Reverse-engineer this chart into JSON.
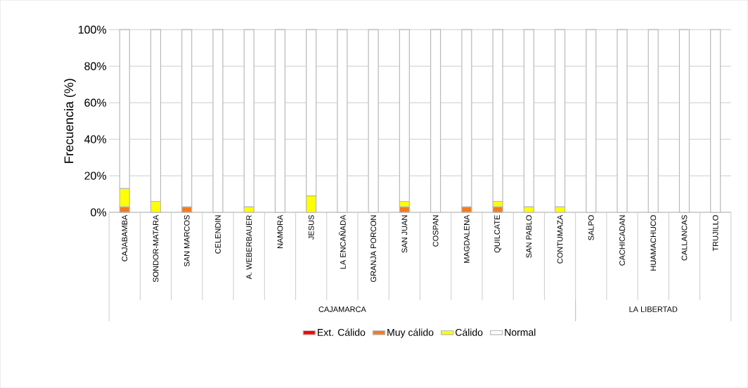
{
  "chart_data": {
    "type": "bar",
    "stacked": true,
    "ylabel": "Frecuencia (%)",
    "categories": [
      "CAJABAMBA",
      "SONDOR-MATARA",
      "SAN MARCOS",
      "CELENDIN",
      "A. WEBERBAUER",
      "NAMORA",
      "JESUS",
      "LA ENCAÑADA",
      "GRANJA PORCON",
      "SAN JUAN",
      "COSPAN",
      "MAGDALENA",
      "QUILCATE",
      "SAN PABLO",
      "CONTUMAZA",
      "SALPO",
      "CACHICADAN",
      "HUAMACHUCO",
      "CALLANCAS",
      "TRUJILLO"
    ],
    "series": [
      {
        "name": "Ext. Cálido",
        "color": "#ff0000",
        "values": [
          0,
          0,
          0,
          0,
          0,
          0,
          0,
          0,
          0,
          0,
          0,
          0,
          0,
          0,
          0,
          0,
          0,
          0,
          0,
          0
        ]
      },
      {
        "name": "Muy cálido",
        "color": "#f47b20",
        "values": [
          3,
          0,
          3,
          0,
          0,
          0,
          0,
          0,
          0,
          3,
          0,
          3,
          3,
          0,
          0,
          0,
          0,
          0,
          0,
          0
        ]
      },
      {
        "name": "Cálido",
        "color": "#ffff00",
        "values": [
          10,
          6,
          0,
          0,
          3,
          0,
          9,
          0,
          0,
          3,
          0,
          0,
          3,
          3,
          3,
          0,
          0,
          0,
          0,
          0
        ]
      },
      {
        "name": "Normal",
        "color": "#ffffff",
        "values": [
          87,
          94,
          97,
          100,
          97,
          100,
          91,
          100,
          100,
          94,
          100,
          97,
          94,
          97,
          97,
          100,
          100,
          100,
          100,
          100
        ]
      }
    ],
    "ylim": [
      0,
      100
    ],
    "yticks": [
      {
        "value": 0,
        "label": "0%"
      },
      {
        "value": 20,
        "label": "20%"
      },
      {
        "value": 40,
        "label": "40%"
      },
      {
        "value": 60,
        "label": "60%"
      },
      {
        "value": 80,
        "label": "80%"
      },
      {
        "value": 100,
        "label": "100%"
      }
    ],
    "grid": "y",
    "legend": "bottom",
    "annotations": [
      "CAJAMARCA",
      "LA LIBERTAD"
    ]
  }
}
